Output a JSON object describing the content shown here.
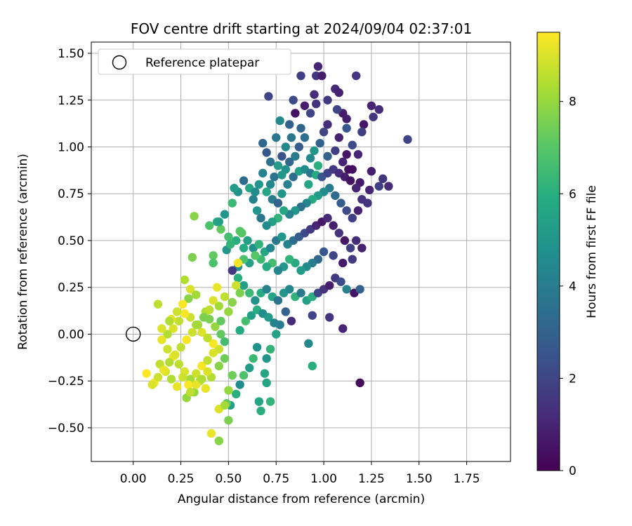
{
  "chart_data": {
    "type": "scatter",
    "title": "FOV centre drift starting at 2024/09/04 02:37:01",
    "xlabel": "Angular distance from reference (arcmin)",
    "ylabel": "Rotation from reference (arcmin)",
    "xlim": [
      -0.22,
      1.98
    ],
    "ylim": [
      -0.68,
      1.56
    ],
    "xticks": [
      "0.00",
      "0.25",
      "0.50",
      "0.75",
      "1.00",
      "1.25",
      "1.50",
      "1.75"
    ],
    "yticks": [
      "−0.50",
      "−0.25",
      "0.00",
      "0.25",
      "0.50",
      "0.75",
      "1.00",
      "1.25",
      "1.50"
    ],
    "grid": true,
    "legend": {
      "placement": "top-left",
      "label": "Reference platepar"
    },
    "reference": {
      "x": 0.0,
      "y": 0.0
    },
    "colorbar": {
      "label": "Hours from first FF file",
      "min": 0,
      "max": 9.5,
      "ticks": [
        "0",
        "2",
        "4",
        "6",
        "8"
      ],
      "colormap": "viridis"
    },
    "points_x_y_hours": [
      [
        0.97,
        1.43,
        1.0
      ],
      [
        0.96,
        1.38,
        1.5
      ],
      [
        0.99,
        1.38,
        0.8
      ],
      [
        1.17,
        1.38,
        1.5
      ],
      [
        0.88,
        1.38,
        1.8
      ],
      [
        0.71,
        1.27,
        2.0
      ],
      [
        0.84,
        1.25,
        2.2
      ],
      [
        1.06,
        1.31,
        1.1
      ],
      [
        1.08,
        1.29,
        0.9
      ],
      [
        1.29,
        1.2,
        1.2
      ],
      [
        1.25,
        1.22,
        1.0
      ],
      [
        1.44,
        1.04,
        2.0
      ],
      [
        1.21,
        1.12,
        0.6
      ],
      [
        1.1,
        1.18,
        0.7
      ],
      [
        0.96,
        1.23,
        1.4
      ],
      [
        0.93,
        1.18,
        2.0
      ],
      [
        0.82,
        1.12,
        3.0
      ],
      [
        0.77,
        1.14,
        4.5
      ],
      [
        0.75,
        1.05,
        3.8
      ],
      [
        0.7,
        0.97,
        2.6
      ],
      [
        0.68,
        1.02,
        3.2
      ],
      [
        1.31,
        0.83,
        1.5
      ],
      [
        1.34,
        0.79,
        1.2
      ],
      [
        1.29,
        0.79,
        1.8
      ],
      [
        1.24,
        0.77,
        1.0
      ],
      [
        1.19,
        0.81,
        0.7
      ],
      [
        1.23,
        0.7,
        1.4
      ],
      [
        1.15,
        0.88,
        0.4
      ],
      [
        1.12,
        0.96,
        0.6
      ],
      [
        1.08,
        1.05,
        0.9
      ],
      [
        1.02,
        1.12,
        1.2
      ],
      [
        1.15,
        1.01,
        2.2
      ],
      [
        1.18,
        0.96,
        1.0
      ],
      [
        1.25,
        0.87,
        0.8
      ],
      [
        1.2,
        1.08,
        1.8
      ],
      [
        1.26,
        1.16,
        1.5
      ],
      [
        1.12,
        1.15,
        0.8
      ],
      [
        1.0,
        1.08,
        2.0
      ],
      [
        0.98,
        1.02,
        3.0
      ],
      [
        0.95,
        0.98,
        5.0
      ],
      [
        0.93,
        0.94,
        4.5
      ],
      [
        0.9,
        1.05,
        3.5
      ],
      [
        0.87,
        1.0,
        2.8
      ],
      [
        0.85,
        0.95,
        4.0
      ],
      [
        0.82,
        0.92,
        3.2
      ],
      [
        0.8,
        0.88,
        4.8
      ],
      [
        0.78,
        0.95,
        2.4
      ],
      [
        0.76,
        0.9,
        5.2
      ],
      [
        0.74,
        0.84,
        3.6
      ],
      [
        0.72,
        0.8,
        4.4
      ],
      [
        0.7,
        0.76,
        5.6
      ],
      [
        0.73,
        0.72,
        4.0
      ],
      [
        0.76,
        0.7,
        3.0
      ],
      [
        0.78,
        0.75,
        5.0
      ],
      [
        0.81,
        0.8,
        4.2
      ],
      [
        0.84,
        0.84,
        3.4
      ],
      [
        0.87,
        0.87,
        5.4
      ],
      [
        0.9,
        0.88,
        4.6
      ],
      [
        0.93,
        0.86,
        3.8
      ],
      [
        0.96,
        0.85,
        5.8
      ],
      [
        0.99,
        0.84,
        2.6
      ],
      [
        1.02,
        0.86,
        2.0
      ],
      [
        1.05,
        0.88,
        1.6
      ],
      [
        1.08,
        0.86,
        1.2
      ],
      [
        1.11,
        0.84,
        0.8
      ],
      [
        1.14,
        0.82,
        0.5
      ],
      [
        1.17,
        0.78,
        1.0
      ],
      [
        1.2,
        0.72,
        1.4
      ],
      [
        1.18,
        0.66,
        0.9
      ],
      [
        1.15,
        0.62,
        1.8
      ],
      [
        1.12,
        0.66,
        2.2
      ],
      [
        1.09,
        0.7,
        2.8
      ],
      [
        1.06,
        0.74,
        3.4
      ],
      [
        1.03,
        0.78,
        4.0
      ],
      [
        1.0,
        0.76,
        4.6
      ],
      [
        0.97,
        0.74,
        5.2
      ],
      [
        0.94,
        0.72,
        5.8
      ],
      [
        0.91,
        0.7,
        4.4
      ],
      [
        0.88,
        0.68,
        3.6
      ],
      [
        0.85,
        0.66,
        5.0
      ],
      [
        0.82,
        0.64,
        4.2
      ],
      [
        0.79,
        0.66,
        5.6
      ],
      [
        0.76,
        0.62,
        6.2
      ],
      [
        0.73,
        0.6,
        5.4
      ],
      [
        0.7,
        0.58,
        4.6
      ],
      [
        0.67,
        0.62,
        3.8
      ],
      [
        0.65,
        0.66,
        5.0
      ],
      [
        0.63,
        0.72,
        4.2
      ],
      [
        0.61,
        0.78,
        5.6
      ],
      [
        0.58,
        0.82,
        3.4
      ],
      [
        0.55,
        0.76,
        4.8
      ],
      [
        0.52,
        0.7,
        6.4
      ],
      [
        0.48,
        0.64,
        5.0
      ],
      [
        0.44,
        0.6,
        5.8
      ],
      [
        0.4,
        0.58,
        6.8
      ],
      [
        0.46,
        0.56,
        7.2
      ],
      [
        0.5,
        0.52,
        6.6
      ],
      [
        0.54,
        0.5,
        6.0
      ],
      [
        0.57,
        0.54,
        7.0
      ],
      [
        0.6,
        0.5,
        5.4
      ],
      [
        0.63,
        0.46,
        4.8
      ],
      [
        0.66,
        0.48,
        6.2
      ],
      [
        0.69,
        0.44,
        5.6
      ],
      [
        0.72,
        0.46,
        4.4
      ],
      [
        0.75,
        0.5,
        3.8
      ],
      [
        0.78,
        0.52,
        5.0
      ],
      [
        0.81,
        0.48,
        4.2
      ],
      [
        0.84,
        0.5,
        3.4
      ],
      [
        0.87,
        0.52,
        2.8
      ],
      [
        0.9,
        0.54,
        2.2
      ],
      [
        0.93,
        0.56,
        1.6
      ],
      [
        0.96,
        0.58,
        1.0
      ],
      [
        0.99,
        0.6,
        0.6
      ],
      [
        1.02,
        0.62,
        1.2
      ],
      [
        1.05,
        0.58,
        0.8
      ],
      [
        1.08,
        0.54,
        1.4
      ],
      [
        1.11,
        0.5,
        0.6
      ],
      [
        1.14,
        0.46,
        1.8
      ],
      [
        1.17,
        0.5,
        1.2
      ],
      [
        1.2,
        0.46,
        0.9
      ],
      [
        1.15,
        0.4,
        1.6
      ],
      [
        1.1,
        0.38,
        0.7
      ],
      [
        1.05,
        0.42,
        2.0
      ],
      [
        1.0,
        0.44,
        2.6
      ],
      [
        0.97,
        0.4,
        3.2
      ],
      [
        0.94,
        0.38,
        4.0
      ],
      [
        0.91,
        0.36,
        4.6
      ],
      [
        0.88,
        0.34,
        5.2
      ],
      [
        0.85,
        0.38,
        5.8
      ],
      [
        0.82,
        0.4,
        6.2
      ],
      [
        0.79,
        0.36,
        5.0
      ],
      [
        0.76,
        0.34,
        4.4
      ],
      [
        0.73,
        0.38,
        6.6
      ],
      [
        0.7,
        0.36,
        5.8
      ],
      [
        0.67,
        0.4,
        6.4
      ],
      [
        0.64,
        0.42,
        7.0
      ],
      [
        0.61,
        0.38,
        5.4
      ],
      [
        0.58,
        0.4,
        6.8
      ],
      [
        0.55,
        0.36,
        4.8
      ],
      [
        0.52,
        0.34,
        1.6
      ],
      [
        0.55,
        0.3,
        6.0
      ],
      [
        0.58,
        0.26,
        5.4
      ],
      [
        0.61,
        0.22,
        6.4
      ],
      [
        0.64,
        0.18,
        4.8
      ],
      [
        0.67,
        0.22,
        5.8
      ],
      [
        0.7,
        0.24,
        4.2
      ],
      [
        0.73,
        0.2,
        5.6
      ],
      [
        0.76,
        0.18,
        3.6
      ],
      [
        0.79,
        0.22,
        5.0
      ],
      [
        0.82,
        0.24,
        4.4
      ],
      [
        0.85,
        0.2,
        6.2
      ],
      [
        0.88,
        0.22,
        3.8
      ],
      [
        0.91,
        0.18,
        5.4
      ],
      [
        0.94,
        0.2,
        6.0
      ],
      [
        0.97,
        0.22,
        2.0
      ],
      [
        1.0,
        0.24,
        1.4
      ],
      [
        1.03,
        0.26,
        0.8
      ],
      [
        1.06,
        0.3,
        1.6
      ],
      [
        1.09,
        0.28,
        2.2
      ],
      [
        1.12,
        0.24,
        4.2
      ],
      [
        1.16,
        0.22,
        0.5
      ],
      [
        1.19,
        0.24,
        3.0
      ],
      [
        1.19,
        -0.26,
        0.3
      ],
      [
        1.1,
        0.03,
        1.0
      ],
      [
        1.03,
        0.09,
        1.5
      ],
      [
        0.94,
        0.1,
        2.0
      ],
      [
        0.92,
        -0.05,
        4.5
      ],
      [
        0.94,
        -0.17,
        6.0
      ],
      [
        0.83,
        0.07,
        1.2
      ],
      [
        0.8,
        0.12,
        3.0
      ],
      [
        0.77,
        0.05,
        4.0
      ],
      [
        0.75,
        0.0,
        5.5
      ],
      [
        0.72,
        -0.08,
        6.2
      ],
      [
        0.7,
        -0.13,
        5.0
      ],
      [
        0.69,
        -0.21,
        5.6
      ],
      [
        0.65,
        -0.07,
        4.8
      ],
      [
        0.63,
        -0.13,
        6.4
      ],
      [
        0.61,
        -0.18,
        5.2
      ],
      [
        0.58,
        -0.22,
        6.8
      ],
      [
        0.56,
        -0.27,
        4.6
      ],
      [
        0.54,
        -0.32,
        6.0
      ],
      [
        0.51,
        -0.38,
        5.4
      ],
      [
        0.5,
        -0.46,
        7.6
      ],
      [
        0.49,
        -0.37,
        7.2
      ],
      [
        0.5,
        -0.3,
        8.0
      ],
      [
        0.52,
        -0.22,
        7.4
      ],
      [
        0.56,
        0.02,
        5.8
      ],
      [
        0.59,
        0.07,
        6.6
      ],
      [
        0.62,
        0.1,
        5.4
      ],
      [
        0.65,
        0.13,
        6.0
      ],
      [
        0.68,
        0.11,
        4.6
      ],
      [
        0.71,
        0.09,
        5.2
      ],
      [
        0.74,
        0.06,
        4.2
      ],
      [
        0.66,
        -0.36,
        5.6
      ],
      [
        0.67,
        -0.41,
        6.0
      ],
      [
        0.7,
        -0.26,
        5.6
      ],
      [
        0.72,
        -0.36,
        6.2
      ],
      [
        0.44,
        0.25,
        9.2
      ],
      [
        0.48,
        0.2,
        8.6
      ],
      [
        0.52,
        0.17,
        7.8
      ],
      [
        0.45,
        0.15,
        8.2
      ],
      [
        0.42,
        0.18,
        9.0
      ],
      [
        0.38,
        0.12,
        8.4
      ],
      [
        0.4,
        0.08,
        7.6
      ],
      [
        0.43,
        0.04,
        8.0
      ],
      [
        0.46,
        0.0,
        7.2
      ],
      [
        0.48,
        -0.04,
        6.6
      ],
      [
        0.45,
        -0.08,
        8.8
      ],
      [
        0.42,
        -0.05,
        9.4
      ],
      [
        0.39,
        -0.02,
        8.6
      ],
      [
        0.36,
        0.01,
        9.0
      ],
      [
        0.33,
        0.05,
        8.2
      ],
      [
        0.3,
        0.09,
        8.8
      ],
      [
        0.27,
        0.11,
        9.4
      ],
      [
        0.24,
        0.07,
        8.6
      ],
      [
        0.21,
        0.03,
        9.0
      ],
      [
        0.18,
        0.0,
        8.4
      ],
      [
        0.15,
        -0.03,
        9.2
      ],
      [
        0.18,
        -0.08,
        8.8
      ],
      [
        0.21,
        -0.12,
        9.4
      ],
      [
        0.24,
        -0.16,
        8.6
      ],
      [
        0.27,
        -0.2,
        9.0
      ],
      [
        0.3,
        -0.24,
        8.2
      ],
      [
        0.33,
        -0.21,
        8.8
      ],
      [
        0.36,
        -0.17,
        9.4
      ],
      [
        0.39,
        -0.14,
        8.6
      ],
      [
        0.42,
        -0.1,
        9.0
      ],
      [
        0.45,
        -0.17,
        7.8
      ],
      [
        0.48,
        -0.13,
        7.4
      ],
      [
        0.41,
        -0.23,
        8.4
      ],
      [
        0.38,
        -0.29,
        9.2
      ],
      [
        0.35,
        -0.25,
        8.6
      ],
      [
        0.32,
        -0.31,
        8.0
      ],
      [
        0.29,
        -0.27,
        9.4
      ],
      [
        0.26,
        -0.23,
        8.8
      ],
      [
        0.23,
        -0.28,
        9.2
      ],
      [
        0.2,
        -0.24,
        8.4
      ],
      [
        0.17,
        -0.2,
        9.0
      ],
      [
        0.14,
        -0.16,
        8.6
      ],
      [
        0.11,
        -0.26,
        9.4
      ],
      [
        0.07,
        -0.21,
        9.6
      ],
      [
        0.1,
        -0.27,
        9.0
      ],
      [
        0.13,
        -0.23,
        8.8
      ],
      [
        0.16,
        -0.19,
        9.2
      ],
      [
        0.19,
        -0.15,
        8.4
      ],
      [
        0.22,
        -0.11,
        9.0
      ],
      [
        0.25,
        -0.07,
        8.6
      ],
      [
        0.28,
        -0.03,
        9.4
      ],
      [
        0.31,
        0.01,
        8.8
      ],
      [
        0.34,
        0.05,
        8.2
      ],
      [
        0.37,
        0.09,
        7.6
      ],
      [
        0.4,
        0.13,
        8.6
      ],
      [
        0.27,
        0.29,
        8.4
      ],
      [
        0.3,
        0.24,
        9.0
      ],
      [
        0.33,
        0.21,
        8.2
      ],
      [
        0.29,
        0.19,
        7.8
      ],
      [
        0.26,
        0.16,
        9.4
      ],
      [
        0.23,
        0.12,
        8.8
      ],
      [
        0.2,
        0.08,
        9.2
      ],
      [
        0.13,
        0.16,
        8.6
      ],
      [
        0.15,
        0.03,
        9.0
      ],
      [
        0.19,
        0.07,
        8.4
      ],
      [
        0.31,
        0.41,
        7.6
      ],
      [
        0.32,
        0.63,
        7.8
      ],
      [
        0.42,
        0.42,
        7.2
      ],
      [
        0.42,
        0.38,
        6.8
      ],
      [
        0.45,
        0.6,
        5.4
      ],
      [
        0.49,
        0.45,
        5.0
      ],
      [
        0.51,
        0.48,
        6.2
      ],
      [
        0.53,
        0.78,
        5.2
      ],
      [
        0.56,
        0.55,
        7.0
      ],
      [
        0.58,
        0.46,
        5.8
      ],
      [
        0.55,
        0.38,
        9.4
      ],
      [
        0.54,
        0.26,
        8.8
      ],
      [
        0.56,
        0.22,
        7.6
      ],
      [
        0.5,
        0.12,
        8.0
      ],
      [
        0.46,
        0.07,
        7.2
      ],
      [
        0.41,
        -0.53,
        9.2
      ],
      [
        0.45,
        -0.57,
        7.8
      ],
      [
        0.45,
        -0.4,
        9.0
      ],
      [
        0.48,
        -0.38,
        8.2
      ],
      [
        0.28,
        -0.34,
        8.0
      ],
      [
        0.3,
        -0.31,
        8.6
      ],
      [
        0.33,
        -0.27,
        9.2
      ],
      [
        0.36,
        -0.24,
        8.4
      ],
      [
        0.39,
        -0.2,
        9.0
      ],
      [
        0.85,
        1.18,
        0.5
      ],
      [
        0.9,
        1.22,
        0.8
      ],
      [
        0.95,
        1.28,
        1.2
      ],
      [
        1.02,
        1.25,
        1.6
      ],
      [
        1.07,
        1.2,
        2.0
      ],
      [
        1.12,
        1.1,
        2.6
      ],
      [
        0.88,
        1.1,
        3.2
      ],
      [
        0.83,
        1.05,
        3.8
      ],
      [
        0.8,
        1.0,
        4.4
      ],
      [
        0.78,
        0.85,
        5.0
      ],
      [
        0.92,
        0.8,
        5.6
      ],
      [
        0.97,
        0.9,
        6.0
      ],
      [
        1.02,
        0.95,
        3.0
      ],
      [
        1.06,
        0.98,
        1.8
      ],
      [
        1.1,
        0.92,
        1.0
      ],
      [
        1.13,
        0.88,
        0.4
      ],
      [
        0.72,
        0.92,
        3.6
      ],
      [
        0.68,
        0.86,
        4.2
      ],
      [
        0.66,
        0.8,
        5.0
      ],
      [
        0.64,
        0.76,
        4.6
      ]
    ]
  }
}
